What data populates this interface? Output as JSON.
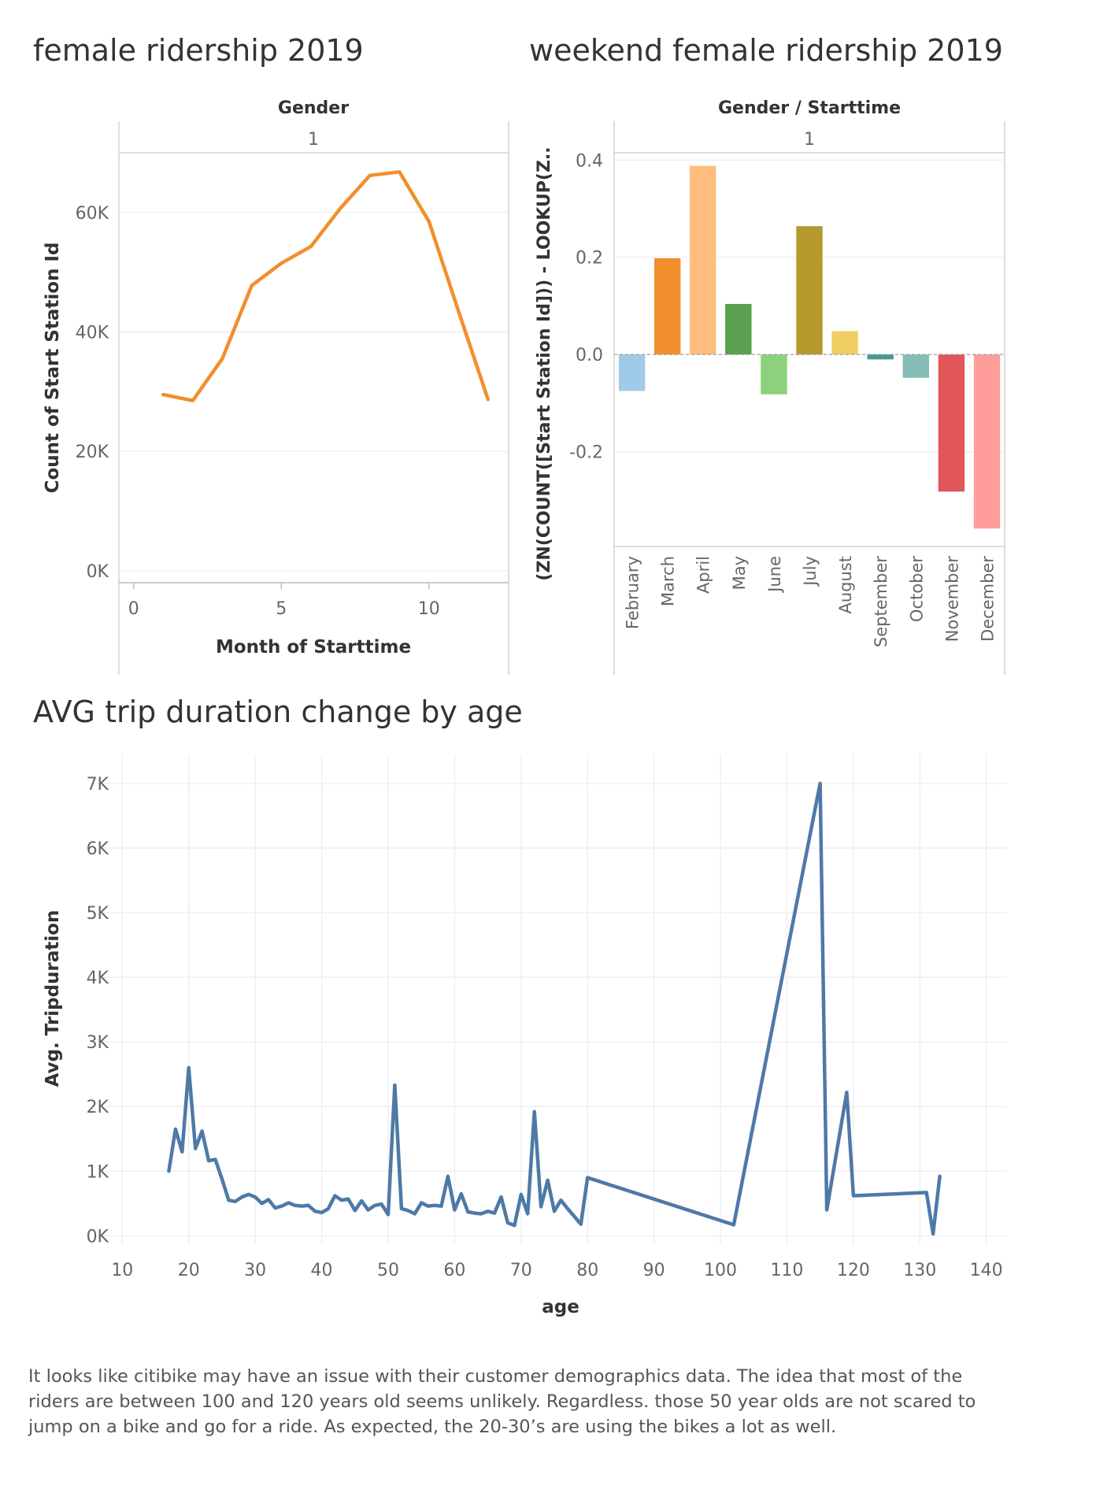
{
  "chart_data": [
    {
      "id": "female",
      "type": "line",
      "title": "female ridership 2019",
      "header_label": "Gender",
      "facet_label": "1",
      "xlabel": "Month of Starttime",
      "ylabel": "Count of Start Station Id",
      "x_ticks": [
        0,
        5,
        10
      ],
      "y_ticks": [
        {
          "value": 0,
          "label": "0K"
        },
        {
          "value": 20000,
          "label": "20K"
        },
        {
          "value": 40000,
          "label": "40K"
        },
        {
          "value": 60000,
          "label": "60K"
        }
      ],
      "xlim": [
        -0.5,
        12.7
      ],
      "ylim": [
        -2000,
        70000
      ],
      "series": [
        {
          "color": "#f28e2b",
          "x": [
            1,
            2,
            3,
            4,
            5,
            6,
            7,
            8,
            9,
            10,
            11,
            12
          ],
          "y": [
            29500,
            28500,
            35500,
            47800,
            51500,
            54300,
            60700,
            66200,
            66800,
            58500,
            43500,
            28700
          ]
        }
      ]
    },
    {
      "id": "weekend",
      "type": "bar",
      "title": "weekend female ridership 2019",
      "header_label": "Gender / Starttime",
      "facet_label": "1",
      "ylabel": "(ZN(COUNT([Start Station Id])) - LOOKUP(Z..",
      "y_ticks": [
        {
          "value": -0.2,
          "label": "-0.2"
        },
        {
          "value": 0.0,
          "label": "0.0"
        },
        {
          "value": 0.2,
          "label": "0.2"
        },
        {
          "value": 0.4,
          "label": "0.4"
        }
      ],
      "ylim": [
        -0.395,
        0.415
      ],
      "categories": [
        "February",
        "March",
        "April",
        "May",
        "June",
        "July",
        "August",
        "September",
        "October",
        "November",
        "December"
      ],
      "values": [
        -0.075,
        0.198,
        0.388,
        0.104,
        -0.082,
        0.264,
        0.048,
        -0.01,
        -0.048,
        -0.282,
        -0.358
      ],
      "colors": [
        "#a0cbe8",
        "#f28e2b",
        "#ffbe7d",
        "#59a14f",
        "#8cd17d",
        "#b6992d",
        "#f1ce63",
        "#499894",
        "#86bcb6",
        "#e15759",
        "#ff9d9a"
      ]
    },
    {
      "id": "age",
      "type": "line",
      "title": "AVG trip duration change by age",
      "xlabel": "age",
      "ylabel": "Avg. Tripduration",
      "x_ticks": [
        10,
        20,
        30,
        40,
        50,
        60,
        70,
        80,
        90,
        100,
        110,
        120,
        130,
        140
      ],
      "y_ticks": [
        {
          "value": 0,
          "label": "0K"
        },
        {
          "value": 1000,
          "label": "1K"
        },
        {
          "value": 2000,
          "label": "2K"
        },
        {
          "value": 3000,
          "label": "3K"
        },
        {
          "value": 4000,
          "label": "4K"
        },
        {
          "value": 5000,
          "label": "5K"
        },
        {
          "value": 6000,
          "label": "6K"
        },
        {
          "value": 7000,
          "label": "7K"
        }
      ],
      "xlim": [
        7,
        143
      ],
      "ylim": [
        -130,
        7450
      ],
      "series": [
        {
          "color": "#4e79a7",
          "x": [
            17,
            18,
            19,
            20,
            21,
            22,
            23,
            24,
            25,
            26,
            27,
            28,
            29,
            30,
            31,
            32,
            33,
            34,
            35,
            36,
            37,
            38,
            39,
            40,
            41,
            42,
            43,
            44,
            45,
            46,
            47,
            48,
            49,
            50,
            51,
            52,
            53,
            54,
            55,
            56,
            57,
            58,
            59,
            60,
            61,
            62,
            63,
            64,
            65,
            66,
            67,
            68,
            69,
            70,
            71,
            72,
            73,
            74,
            75,
            76,
            77,
            79,
            80,
            102,
            115,
            116,
            119,
            120,
            131,
            132,
            133
          ],
          "y": [
            1000,
            1650,
            1300,
            2600,
            1350,
            1620,
            1160,
            1180,
            880,
            550,
            530,
            600,
            640,
            600,
            500,
            560,
            430,
            460,
            510,
            470,
            460,
            470,
            380,
            360,
            420,
            620,
            550,
            570,
            390,
            540,
            400,
            470,
            490,
            330,
            2330,
            420,
            390,
            340,
            510,
            460,
            470,
            460,
            920,
            400,
            650,
            370,
            350,
            340,
            380,
            350,
            600,
            200,
            160,
            640,
            340,
            1920,
            450,
            860,
            380,
            550,
            420,
            180,
            900,
            170,
            7000,
            400,
            2220,
            620,
            670,
            30,
            920
          ]
        }
      ]
    }
  ],
  "note": [
    "It looks like citibike may have an issue with their customer demographics data. The idea that most of the",
    "riders are between 100 and 120 years old seems unlikely. Regardless. those 50 year olds are not scared to",
    "jump on a bike and go for a ride. As expected, the 20-30’s are using the bikes a lot as well."
  ]
}
